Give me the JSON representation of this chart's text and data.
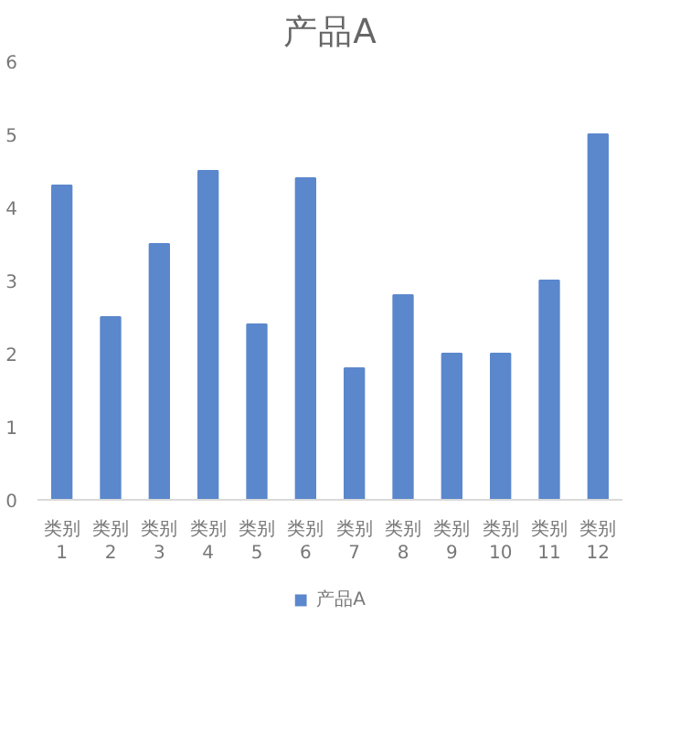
{
  "chart_data": {
    "type": "bar",
    "title": "产品A",
    "categories": [
      "类别 1",
      "类别 2",
      "类别 3",
      "类别 4",
      "类别 5",
      "类别 6",
      "类别 7",
      "类别 8",
      "类别 9",
      "类别 10",
      "类别 11",
      "类别 12"
    ],
    "series": [
      {
        "name": "产品A",
        "color": "#5b87cc",
        "values": [
          4.3,
          2.5,
          3.5,
          4.5,
          2.4,
          4.4,
          1.8,
          2.8,
          2.0,
          2.0,
          3.0,
          5.0
        ]
      }
    ],
    "ylim": [
      0,
      6
    ],
    "yticks": [
      0,
      1,
      2,
      3,
      4,
      5,
      6
    ],
    "grid": false,
    "legend": "bottom"
  }
}
